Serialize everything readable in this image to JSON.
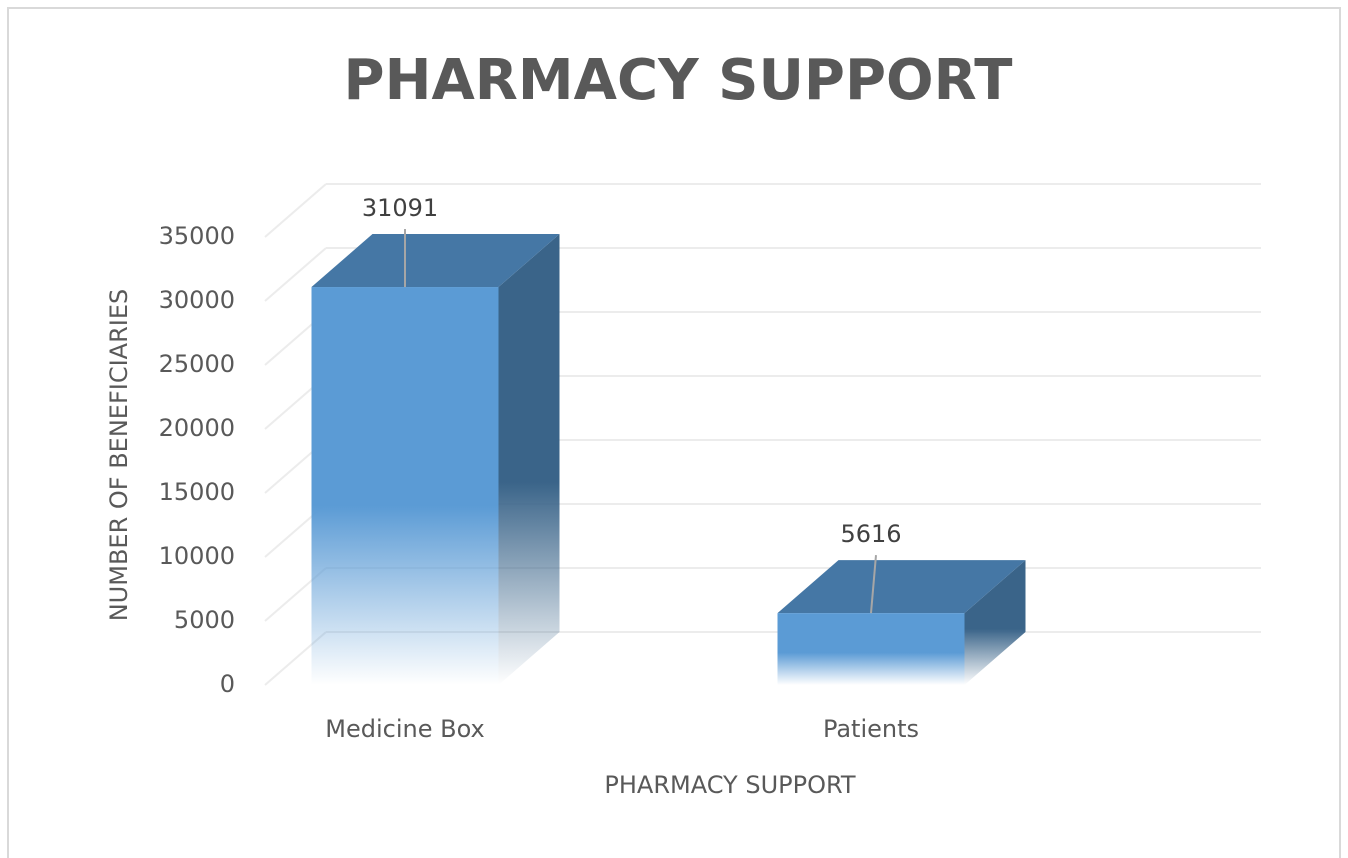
{
  "chart_data": {
    "type": "bar3d",
    "title": "PHARMACY SUPPORT",
    "x_label": "PHARMACY SUPPORT",
    "y_label": "NUMBER OF BENEFICIARIES",
    "categories": [
      "Medicine Box",
      "Patients"
    ],
    "values": [
      31091,
      5616
    ],
    "color": "#5b9bd5",
    "ylim": [
      0,
      35000
    ],
    "yticks": [
      0,
      5000,
      10000,
      15000,
      20000,
      25000,
      30000,
      35000
    ],
    "grid": true
  }
}
